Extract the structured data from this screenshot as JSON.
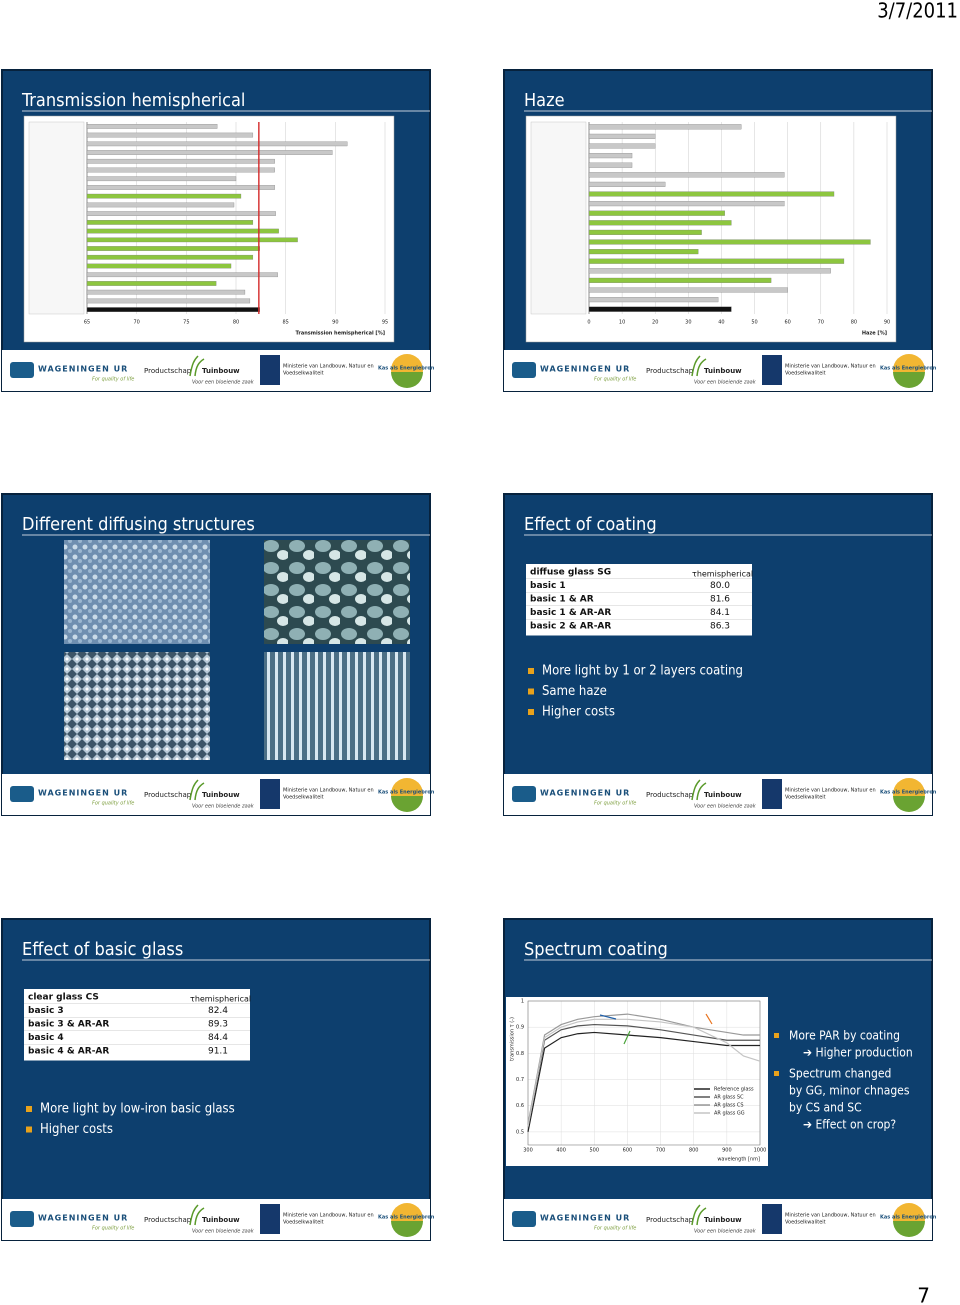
{
  "header": {
    "date": "3/7/2011"
  },
  "page_number": "7",
  "footer": {
    "wur": "WAGENINGEN UR",
    "wur_tagline": "For quality of life",
    "productschap": "Productschap",
    "tuinbouw": "Tuinbouw",
    "tuinbouw_tagline": "Voor een bloeiende zaak",
    "ministerie_line1": "Ministerie van Landbouw, Natuur en",
    "ministerie_line2": "Voedselkwaliteit",
    "kas": "Kas als Energiebron"
  },
  "slides": [
    {
      "title": "Transmission hemispherical",
      "chart_data": {
        "type": "bar",
        "orientation": "horizontal",
        "values": [
          78.1,
          81.7,
          91.2,
          89.7,
          83.9,
          83.9,
          80,
          83.9,
          80.5,
          79.8,
          84,
          81.7,
          84.3,
          86.2,
          82.4,
          81.7,
          79.5,
          84.2,
          78,
          80.9,
          81.4,
          82.4
        ],
        "colors": [
          "#c8c8c8",
          "#c8c8c8",
          "#c8c8c8",
          "#c8c8c8",
          "#c8c8c8",
          "#c8c8c8",
          "#c8c8c8",
          "#c8c8c8",
          "#8dc63f",
          "#c8c8c8",
          "#c8c8c8",
          "#8dc63f",
          "#8dc63f",
          "#8dc63f",
          "#8dc63f",
          "#8dc63f",
          "#8dc63f",
          "#c8c8c8",
          "#8dc63f",
          "#c8c8c8",
          "#c8c8c8",
          "#111111"
        ],
        "xlim": [
          65,
          95
        ],
        "xticks": [
          65,
          70,
          75,
          80,
          85,
          90,
          95
        ],
        "xlabel": "Transmission hemispherical [%]",
        "reference_line": 82.3,
        "reference_color": "#d42a2a",
        "grid": true
      }
    },
    {
      "title": "Haze",
      "chart_data": {
        "type": "bar",
        "orientation": "horizontal",
        "values": [
          46,
          20,
          20,
          13,
          13,
          59,
          23,
          74,
          59,
          41,
          43,
          34,
          85,
          33,
          77,
          73,
          55,
          60,
          39,
          43
        ],
        "colors": [
          "#c8c8c8",
          "#c8c8c8",
          "#c8c8c8",
          "#c8c8c8",
          "#c8c8c8",
          "#c8c8c8",
          "#c8c8c8",
          "#8dc63f",
          "#c8c8c8",
          "#8dc63f",
          "#8dc63f",
          "#8dc63f",
          "#8dc63f",
          "#8dc63f",
          "#8dc63f",
          "#c8c8c8",
          "#8dc63f",
          "#c8c8c8",
          "#c8c8c8",
          "#111111"
        ],
        "xlim": [
          0,
          90
        ],
        "xticks": [
          0,
          10,
          20,
          30,
          40,
          50,
          60,
          70,
          80,
          90
        ],
        "xlabel": "Haze [%]",
        "grid": true
      }
    },
    {
      "title": "Different diffusing structures"
    },
    {
      "title": "Effect of coating",
      "table": {
        "header": [
          "diffuse glass SG",
          "τhemispherical"
        ],
        "rows": [
          [
            "basic 1",
            "80.0"
          ],
          [
            "basic 1 & AR",
            "81.6"
          ],
          [
            "basic 1 & AR-AR",
            "84.1"
          ],
          [
            "basic 2 & AR-AR",
            "86.3"
          ]
        ]
      },
      "bullets": [
        "More light by 1 or 2 layers coating",
        "Same haze",
        "Higher costs"
      ]
    },
    {
      "title": "Effect of basic glass",
      "table": {
        "header": [
          "clear glass CS",
          "τhemispherical"
        ],
        "rows": [
          [
            "basic 3",
            "82.4"
          ],
          [
            "basic 3 & AR-AR",
            "89.3"
          ],
          [
            "basic 4",
            "84.4"
          ],
          [
            "basic 4 & AR-AR",
            "91.1"
          ]
        ]
      },
      "bullets": [
        "More light by low-iron basic glass",
        "Higher costs"
      ]
    },
    {
      "title": "Spectrum coating",
      "chart_data": {
        "type": "line",
        "x": [
          300,
          350,
          400,
          450,
          500,
          600,
          700,
          800,
          900,
          950,
          1000
        ],
        "series": [
          {
            "name": "Reference glass",
            "color": "#222222",
            "values": [
              0.5,
              0.82,
              0.86,
              0.875,
              0.88,
              0.87,
              0.86,
              0.845,
              0.83,
              0.83,
              0.83
            ]
          },
          {
            "name": "AR glass SC",
            "color": "#555555",
            "values": [
              0.52,
              0.85,
              0.89,
              0.905,
              0.91,
              0.905,
              0.89,
              0.87,
              0.85,
              0.85,
              0.85
            ]
          },
          {
            "name": "AR glass CS",
            "color": "#999999",
            "values": [
              0.53,
              0.87,
              0.91,
              0.93,
              0.94,
              0.95,
              0.93,
              0.9,
              0.88,
              0.87,
              0.87
            ]
          },
          {
            "name": "AR glass GG",
            "color": "#c4c4c4",
            "values": [
              0.52,
              0.86,
              0.9,
              0.92,
              0.93,
              0.93,
              0.92,
              0.9,
              0.84,
              0.79,
              0.77
            ]
          }
        ],
        "xlim": [
          300,
          1000
        ],
        "xticks": [
          300,
          400,
          500,
          600,
          700,
          800,
          900,
          1000
        ],
        "ylim": [
          0.45,
          1.0
        ],
        "yticks": [
          0.5,
          0.6,
          0.7,
          0.8,
          0.9,
          1
        ],
        "xlabel": "wavelength [nm]",
        "ylabel": "transmission τ (-)",
        "grid": true
      },
      "bullets": [
        {
          "lines": [
            "More PAR by coating",
            "➔ Higher production"
          ]
        },
        {
          "lines": [
            "Spectrum changed",
            "by  GG, minor chnages",
            "by CS and SC",
            "➔ Effect on crop?"
          ]
        }
      ]
    }
  ]
}
